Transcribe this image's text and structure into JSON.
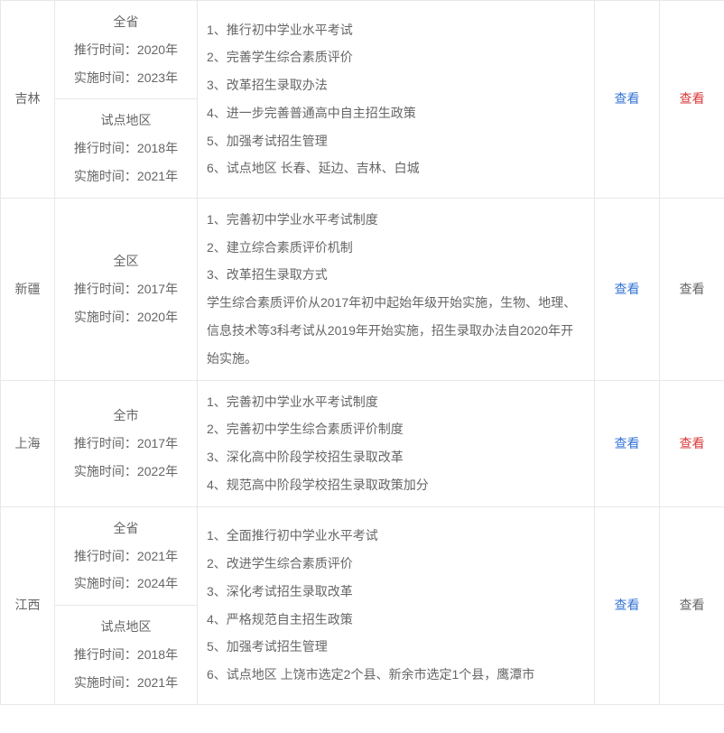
{
  "rows": [
    {
      "province": "吉林",
      "scopes": [
        {
          "title": "全省",
          "line1": "推行时间：2020年",
          "line2": "实施时间：2023年"
        },
        {
          "title": "试点地区",
          "line1": "推行时间：2018年",
          "line2": "实施时间：2021年"
        }
      ],
      "content": [
        "1、推行初中学业水平考试",
        "2、完善学生综合素质评价",
        "3、改革招生录取办法",
        "4、进一步完善普通高中自主招生政策",
        "5、加强考试招生管理",
        "6、试点地区 长春、延边、吉林、白城"
      ],
      "link1": {
        "text": "查看",
        "style": "blue"
      },
      "link2": {
        "text": "查看",
        "style": "red"
      }
    },
    {
      "province": "新疆",
      "scopes": [
        {
          "title": "全区",
          "line1": "推行时间：2017年",
          "line2": "实施时间：2020年"
        }
      ],
      "content": [
        "1、完善初中学业水平考试制度",
        "2、建立综合素质评价机制",
        "3、改革招生录取方式",
        "学生综合素质评价从2017年初中起始年级开始实施，生物、地理、信息技术等3科考试从2019年开始实施，招生录取办法自2020年开始实施。"
      ],
      "link1": {
        "text": "查看",
        "style": "blue"
      },
      "link2": {
        "text": "查看",
        "style": "gray"
      }
    },
    {
      "province": "上海",
      "scopes": [
        {
          "title": "全市",
          "line1": "推行时间：2017年",
          "line2": "实施时间：2022年"
        }
      ],
      "content": [
        "1、完善初中学业水平考试制度",
        "2、完善初中学生综合素质评价制度",
        "3、深化高中阶段学校招生录取改革",
        "4、规范高中阶段学校招生录取政策加分"
      ],
      "link1": {
        "text": "查看",
        "style": "blue"
      },
      "link2": {
        "text": "查看",
        "style": "red"
      }
    },
    {
      "province": "江西",
      "scopes": [
        {
          "title": "全省",
          "line1": "推行时间：2021年",
          "line2": "实施时间：2024年"
        },
        {
          "title": "试点地区",
          "line1": "推行时间：2018年",
          "line2": "实施时间：2021年"
        }
      ],
      "content": [
        "1、全面推行初中学业水平考试",
        "2、改进学生综合素质评价",
        "3、深化考试招生录取改革",
        "4、严格规范自主招生政策",
        "5、加强考试招生管理",
        "6、试点地区 上饶市选定2个县、新余市选定1个县，鹰潭市"
      ],
      "link1": {
        "text": "查看",
        "style": "blue"
      },
      "link2": {
        "text": "查看",
        "style": "gray"
      }
    }
  ]
}
